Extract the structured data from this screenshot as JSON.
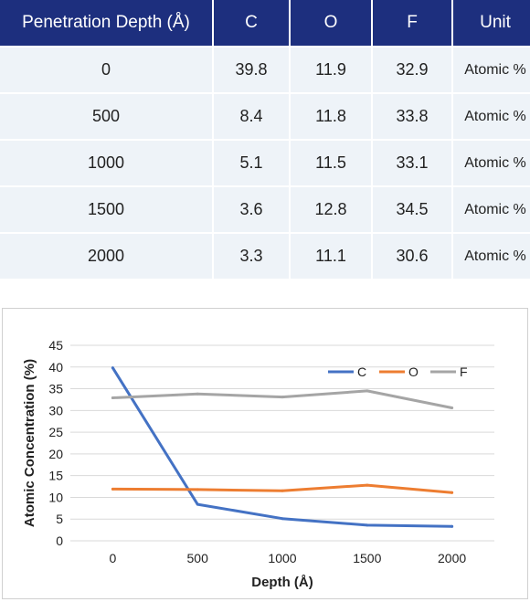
{
  "table": {
    "headers": [
      "Penetration Depth (Å)",
      "C",
      "O",
      "F",
      "Unit"
    ],
    "rows": [
      [
        "0",
        "39.8",
        "11.9",
        "32.9",
        "Atomic %"
      ],
      [
        "500",
        "8.4",
        "11.8",
        "33.8",
        "Atomic %"
      ],
      [
        "1000",
        "5.1",
        "11.5",
        "33.1",
        "Atomic %"
      ],
      [
        "1500",
        "3.6",
        "12.8",
        "34.5",
        "Atomic %"
      ],
      [
        "2000",
        "3.3",
        "11.1",
        "30.6",
        "Atomic %"
      ]
    ]
  },
  "chart_data": {
    "type": "line",
    "title": "",
    "xlabel": "Depth (Å)",
    "ylabel": "Atomic Concentration (%)",
    "x": [
      0,
      500,
      1000,
      1500,
      2000
    ],
    "x_tick_labels": [
      "0",
      "500",
      "1000",
      "1500",
      "2000"
    ],
    "ylim": [
      0,
      45
    ],
    "y_ticks": [
      0,
      5,
      10,
      15,
      20,
      25,
      30,
      35,
      40,
      45
    ],
    "grid": "horizontal",
    "legend_position": "top-right",
    "series": [
      {
        "name": "C",
        "values": [
          39.8,
          8.4,
          5.1,
          3.6,
          3.3
        ],
        "color": "#4472c4"
      },
      {
        "name": "O",
        "values": [
          11.9,
          11.8,
          11.5,
          12.8,
          11.1
        ],
        "color": "#ed7d31"
      },
      {
        "name": "F",
        "values": [
          32.9,
          33.8,
          33.1,
          34.5,
          30.6
        ],
        "color": "#a5a5a5"
      }
    ]
  }
}
